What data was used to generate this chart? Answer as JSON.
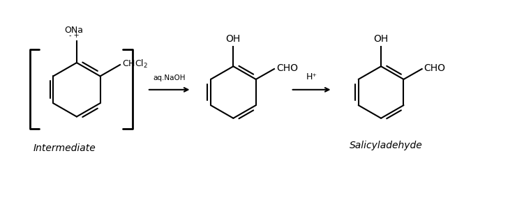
{
  "bg_color": "#ffffff",
  "line_color": "#000000",
  "text_color": "#000000",
  "arrow_color": "#000000",
  "fig_width": 7.51,
  "fig_height": 2.83,
  "dpi": 100,
  "bracket_label": "Intermediate",
  "product_label": "Salicyladehyde",
  "arrow1_label": "aq.NaOH",
  "arrow2_label": "H⁺",
  "label1": "⁺ONa",
  "label1_charge": "- +",
  "label2": "CHCl₂",
  "label3": "OH",
  "label4": "CHO",
  "label5": "OH",
  "label6": "CHO"
}
